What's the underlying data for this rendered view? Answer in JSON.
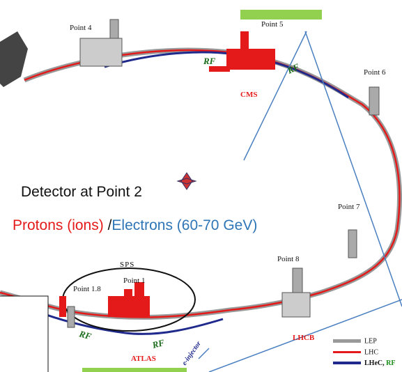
{
  "points": [
    "Point 4",
    "Point 5",
    "Point 6",
    "Point 7",
    "Point 8",
    "Point 1",
    "Point 1.8"
  ],
  "sps": "SPS",
  "caption": {
    "detector": "Detector at Point 2",
    "protons": "Protons (ions) ",
    "slash": "/",
    "electrons": "Electrons (60-70 GeV)"
  },
  "experiments": {
    "cms": "CMS",
    "atlas": "ATLAS",
    "lhcb": "LHCB"
  },
  "rf_labels": [
    "RF",
    "RF",
    "RF",
    "RF"
  ],
  "injector": "e-injector",
  "legend": {
    "lep": "LEP",
    "lhc": "LHC",
    "lhec": "LHeC, ",
    "rf": "RF"
  }
}
